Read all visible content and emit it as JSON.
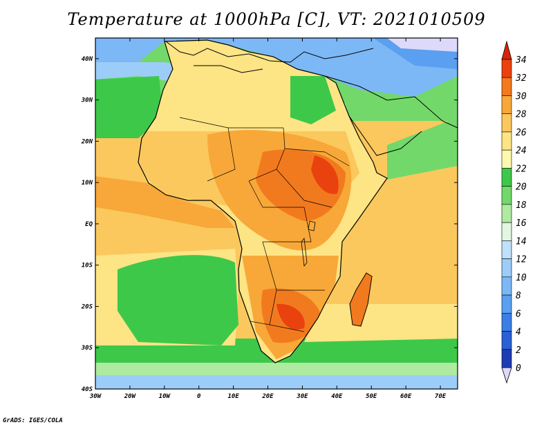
{
  "title": "Temperature at 1000hPa [C], VT: 2021010509",
  "credit": "GrADS: IGES/COLA",
  "map": {
    "lon_range": [
      -30,
      75
    ],
    "lat_range": [
      -40,
      45
    ],
    "x_ticks": [
      {
        "lon": -30,
        "label": "30W"
      },
      {
        "lon": -20,
        "label": "20W"
      },
      {
        "lon": -10,
        "label": "10W"
      },
      {
        "lon": 0,
        "label": "0"
      },
      {
        "lon": 10,
        "label": "10E"
      },
      {
        "lon": 20,
        "label": "20E"
      },
      {
        "lon": 30,
        "label": "30E"
      },
      {
        "lon": 40,
        "label": "40E"
      },
      {
        "lon": 50,
        "label": "50E"
      },
      {
        "lon": 60,
        "label": "60E"
      },
      {
        "lon": 70,
        "label": "70E"
      }
    ],
    "y_ticks": [
      {
        "lat": 40,
        "label": "40N"
      },
      {
        "lat": 30,
        "label": "30N"
      },
      {
        "lat": 20,
        "label": "20N"
      },
      {
        "lat": 10,
        "label": "10N"
      },
      {
        "lat": 0,
        "label": "EQ"
      },
      {
        "lat": -10,
        "label": "10S"
      },
      {
        "lat": -20,
        "label": "20S"
      },
      {
        "lat": -30,
        "label": "30S"
      },
      {
        "lat": -40,
        "label": "40S"
      }
    ]
  },
  "colorbar": {
    "levels": [
      {
        "value": "0",
        "color": "#1a1a7a"
      },
      {
        "value": "2",
        "color": "#1e3cb4"
      },
      {
        "value": "4",
        "color": "#2a5fd6"
      },
      {
        "value": "6",
        "color": "#3a7ee6"
      },
      {
        "value": "8",
        "color": "#5a9ff0"
      },
      {
        "value": "10",
        "color": "#7cb8f5"
      },
      {
        "value": "12",
        "color": "#9ccdf8"
      },
      {
        "value": "14",
        "color": "#bfe1fb"
      },
      {
        "value": "16",
        "color": "#e2f6e2"
      },
      {
        "value": "18",
        "color": "#aeeaa0"
      },
      {
        "value": "20",
        "color": "#72d86a"
      },
      {
        "value": "22",
        "color": "#3ec84a"
      },
      {
        "value": "24",
        "color": "#fff9b0"
      },
      {
        "value": "26",
        "color": "#fde485"
      },
      {
        "value": "28",
        "color": "#fbc85e"
      },
      {
        "value": "30",
        "color": "#f8a838"
      },
      {
        "value": "32",
        "color": "#f27a1e"
      },
      {
        "value": "34",
        "color": "#e9420f"
      }
    ],
    "top_color": "#d9240a",
    "bottom_color": "#ddd9fb"
  }
}
